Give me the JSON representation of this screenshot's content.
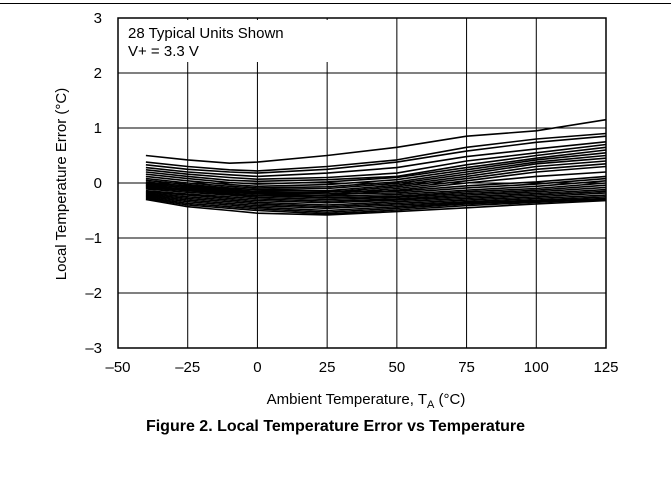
{
  "caption": "Figure 2. Local Temperature Error vs Temperature",
  "chart_data": {
    "type": "line",
    "xlabel": "Ambient Temperature, T",
    "xlabel_sub": "A",
    "xlabel_unit": " (°C)",
    "ylabel": "Local Temperature Error (°C)",
    "xlim": [
      -50,
      125
    ],
    "ylim": [
      -3,
      3
    ],
    "xticks": [
      -50,
      -25,
      0,
      25,
      50,
      75,
      100,
      125
    ],
    "xtick_labels": [
      "–50",
      "–25",
      "0",
      "25",
      "50",
      "75",
      "100",
      "125"
    ],
    "yticks": [
      -3,
      -2,
      -1,
      0,
      1,
      2,
      3
    ],
    "ytick_labels": [
      "–3",
      "–2",
      "–1",
      "0",
      "1",
      "2",
      "3"
    ],
    "grid": true,
    "annotations": [
      "28 Typical Units Shown",
      "V+ = 3.3 V"
    ],
    "line_color": "#000000",
    "x": [
      -40,
      -25,
      -10,
      0,
      25,
      50,
      75,
      100,
      125
    ],
    "series": [
      {
        "values": [
          0.5,
          0.42,
          0.36,
          0.38,
          0.5,
          0.65,
          0.85,
          0.95,
          1.15
        ]
      },
      {
        "values": [
          0.38,
          0.3,
          0.24,
          0.22,
          0.3,
          0.42,
          0.65,
          0.8,
          0.9
        ]
      },
      {
        "values": [
          0.33,
          0.25,
          0.2,
          0.18,
          0.25,
          0.38,
          0.58,
          0.74,
          0.85
        ]
      },
      {
        "values": [
          0.28,
          0.2,
          0.15,
          0.12,
          0.18,
          0.28,
          0.48,
          0.62,
          0.75
        ]
      },
      {
        "values": [
          0.24,
          0.16,
          0.1,
          0.07,
          0.1,
          0.18,
          0.4,
          0.55,
          0.7
        ]
      },
      {
        "values": [
          0.2,
          0.12,
          0.05,
          0.03,
          0.06,
          0.12,
          0.33,
          0.5,
          0.65
        ]
      },
      {
        "values": [
          0.16,
          0.08,
          0.01,
          -0.02,
          0.02,
          0.1,
          0.28,
          0.45,
          0.6
        ]
      },
      {
        "values": [
          0.12,
          0.04,
          -0.03,
          -0.06,
          -0.03,
          0.06,
          0.24,
          0.42,
          0.55
        ]
      },
      {
        "values": [
          0.08,
          0.0,
          -0.06,
          -0.09,
          -0.07,
          0.02,
          0.2,
          0.38,
          0.5
        ]
      },
      {
        "values": [
          0.05,
          -0.03,
          -0.09,
          -0.12,
          -0.1,
          -0.01,
          0.16,
          0.35,
          0.45
        ]
      },
      {
        "values": [
          0.02,
          -0.06,
          -0.12,
          -0.15,
          -0.14,
          -0.04,
          0.12,
          0.3,
          0.4
        ]
      },
      {
        "values": [
          -0.01,
          -0.09,
          -0.15,
          -0.18,
          -0.17,
          -0.07,
          0.08,
          0.25,
          0.35
        ]
      },
      {
        "values": [
          -0.04,
          -0.12,
          -0.17,
          -0.2,
          -0.2,
          -0.1,
          0.04,
          0.2,
          0.3
        ]
      },
      {
        "values": [
          -0.07,
          -0.14,
          -0.2,
          -0.23,
          -0.23,
          -0.13,
          0.0,
          0.12,
          0.2
        ]
      },
      {
        "values": [
          0.0,
          -0.05,
          -0.1,
          -0.12,
          -0.15,
          -0.15,
          -0.05,
          0.02,
          0.12
        ]
      },
      {
        "values": [
          -0.03,
          -0.08,
          -0.13,
          -0.16,
          -0.2,
          -0.18,
          -0.09,
          -0.02,
          0.08
        ]
      },
      {
        "values": [
          -0.06,
          -0.11,
          -0.16,
          -0.2,
          -0.24,
          -0.21,
          -0.13,
          -0.06,
          0.04
        ]
      },
      {
        "values": [
          -0.09,
          -0.14,
          -0.19,
          -0.23,
          -0.27,
          -0.24,
          -0.16,
          -0.1,
          0.0
        ]
      },
      {
        "values": [
          -0.11,
          -0.17,
          -0.22,
          -0.26,
          -0.3,
          -0.26,
          -0.19,
          -0.13,
          -0.04
        ]
      },
      {
        "values": [
          -0.14,
          -0.2,
          -0.25,
          -0.29,
          -0.33,
          -0.29,
          -0.22,
          -0.16,
          -0.08
        ]
      },
      {
        "values": [
          -0.16,
          -0.22,
          -0.28,
          -0.32,
          -0.36,
          -0.31,
          -0.25,
          -0.19,
          -0.12
        ]
      },
      {
        "values": [
          -0.18,
          -0.25,
          -0.31,
          -0.35,
          -0.4,
          -0.34,
          -0.28,
          -0.22,
          -0.15
        ]
      },
      {
        "values": [
          -0.2,
          -0.28,
          -0.34,
          -0.38,
          -0.43,
          -0.37,
          -0.31,
          -0.25,
          -0.18
        ]
      },
      {
        "values": [
          -0.22,
          -0.31,
          -0.37,
          -0.41,
          -0.46,
          -0.4,
          -0.34,
          -0.28,
          -0.22
        ]
      },
      {
        "values": [
          -0.24,
          -0.34,
          -0.4,
          -0.44,
          -0.5,
          -0.43,
          -0.36,
          -0.31,
          -0.25
        ]
      },
      {
        "values": [
          -0.26,
          -0.37,
          -0.43,
          -0.47,
          -0.53,
          -0.46,
          -0.38,
          -0.33,
          -0.28
        ]
      },
      {
        "values": [
          -0.28,
          -0.4,
          -0.46,
          -0.5,
          -0.56,
          -0.49,
          -0.41,
          -0.35,
          -0.3
        ]
      },
      {
        "values": [
          -0.3,
          -0.43,
          -0.5,
          -0.55,
          -0.58,
          -0.52,
          -0.45,
          -0.38,
          -0.32
        ]
      }
    ]
  }
}
